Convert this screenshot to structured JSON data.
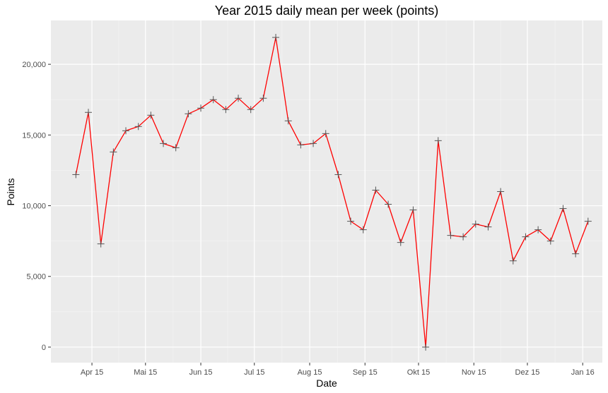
{
  "chart_data": {
    "type": "line",
    "title": "Year 2015 daily mean per week (points)",
    "xlabel": "Date",
    "ylabel": "Points",
    "x_tick_labels": [
      "Apr 15",
      "Mai 15",
      "Jun 15",
      "Jul 15",
      "Aug 15",
      "Sep 15",
      "Okt 15",
      "Nov 15",
      "Dez 15",
      "Jan 16"
    ],
    "x_tick_dates": [
      "2015-04-01",
      "2015-05-01",
      "2015-06-01",
      "2015-07-01",
      "2015-08-01",
      "2015-09-01",
      "2015-10-01",
      "2015-11-01",
      "2015-12-01",
      "2016-01-01"
    ],
    "xlim": [
      "2015-03-09",
      "2016-01-12"
    ],
    "y_ticks": [
      0,
      5000,
      10000,
      15000,
      20000
    ],
    "y_tick_labels": [
      "0",
      "5,000",
      "10,000",
      "15,000",
      "20,000"
    ],
    "ylim": [
      -1100,
      23100
    ],
    "grid": true,
    "line_color": "#ff0000",
    "point_color": "#555555",
    "panel_background": "#ebebeb",
    "series": [
      {
        "x": [
          "2015-03-23",
          "2015-03-30",
          "2015-04-06",
          "2015-04-13",
          "2015-04-20",
          "2015-04-27",
          "2015-05-04",
          "2015-05-11",
          "2015-05-18",
          "2015-05-25",
          "2015-06-01",
          "2015-06-08",
          "2015-06-15",
          "2015-06-22",
          "2015-06-29",
          "2015-07-06",
          "2015-07-13",
          "2015-07-20",
          "2015-07-27",
          "2015-08-03",
          "2015-08-10",
          "2015-08-17",
          "2015-08-24",
          "2015-08-31",
          "2015-09-07",
          "2015-09-14",
          "2015-09-21",
          "2015-09-28",
          "2015-10-05",
          "2015-10-12",
          "2015-10-19",
          "2015-10-26",
          "2015-11-02",
          "2015-11-09",
          "2015-11-16",
          "2015-11-23",
          "2015-11-30",
          "2015-12-07",
          "2015-12-14",
          "2015-12-21",
          "2015-12-28",
          "2016-01-04"
        ],
        "y": [
          12200,
          16600,
          7300,
          13800,
          15300,
          15600,
          16400,
          14400,
          14100,
          16500,
          16900,
          17500,
          16800,
          17600,
          16800,
          17600,
          21900,
          16000,
          14300,
          14400,
          15100,
          12200,
          8900,
          8300,
          11100,
          10100,
          7400,
          9700,
          0,
          14600,
          7900,
          7800,
          8700,
          8500,
          11000,
          6100,
          7800,
          8300,
          7500,
          9800,
          6600,
          8900
        ]
      }
    ]
  }
}
